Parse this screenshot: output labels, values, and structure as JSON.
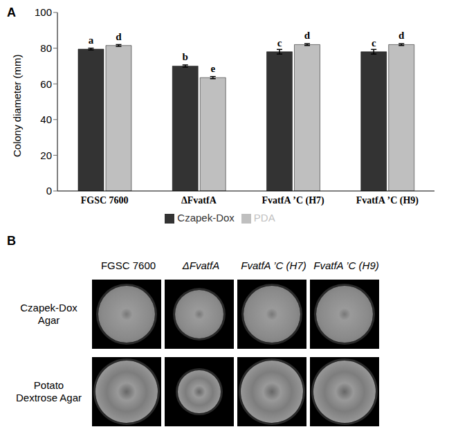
{
  "chart_data": {
    "type": "bar",
    "panel_label": "A",
    "y_label": "Colony diameter (mm)",
    "categories": [
      "FGSC 7600",
      "ΔFvatfA",
      "FvatfA ’C (H7)",
      "FvatfA ’C (H9)"
    ],
    "series": [
      {
        "name": "Czapek-Dox",
        "color": "#333333",
        "values": [
          79.5,
          70,
          78,
          78
        ],
        "errors": [
          0.5,
          0.6,
          1.3,
          1.3
        ],
        "annotations": [
          "a",
          "b",
          "c",
          "c"
        ]
      },
      {
        "name": "PDA",
        "color": "#bfbfbf",
        "values": [
          81.5,
          63.5,
          82,
          82
        ],
        "errors": [
          0.5,
          0.6,
          0.5,
          0.5
        ],
        "annotations": [
          "d",
          "e",
          "d",
          "d"
        ]
      }
    ],
    "ylim": [
      0,
      100
    ],
    "yticks": [
      0,
      20,
      40,
      60,
      80,
      100
    ],
    "grid": false,
    "legend": "bottom"
  },
  "image_panel": {
    "panel_label": "B",
    "columns": [
      "FGSC 7600",
      "ΔFvatfA",
      "FvatfA ’C (H7)",
      "FvatfA ’C (H9)"
    ],
    "rows": [
      "Czapek-Dox Agar",
      "Potato Dextrose Agar"
    ]
  }
}
